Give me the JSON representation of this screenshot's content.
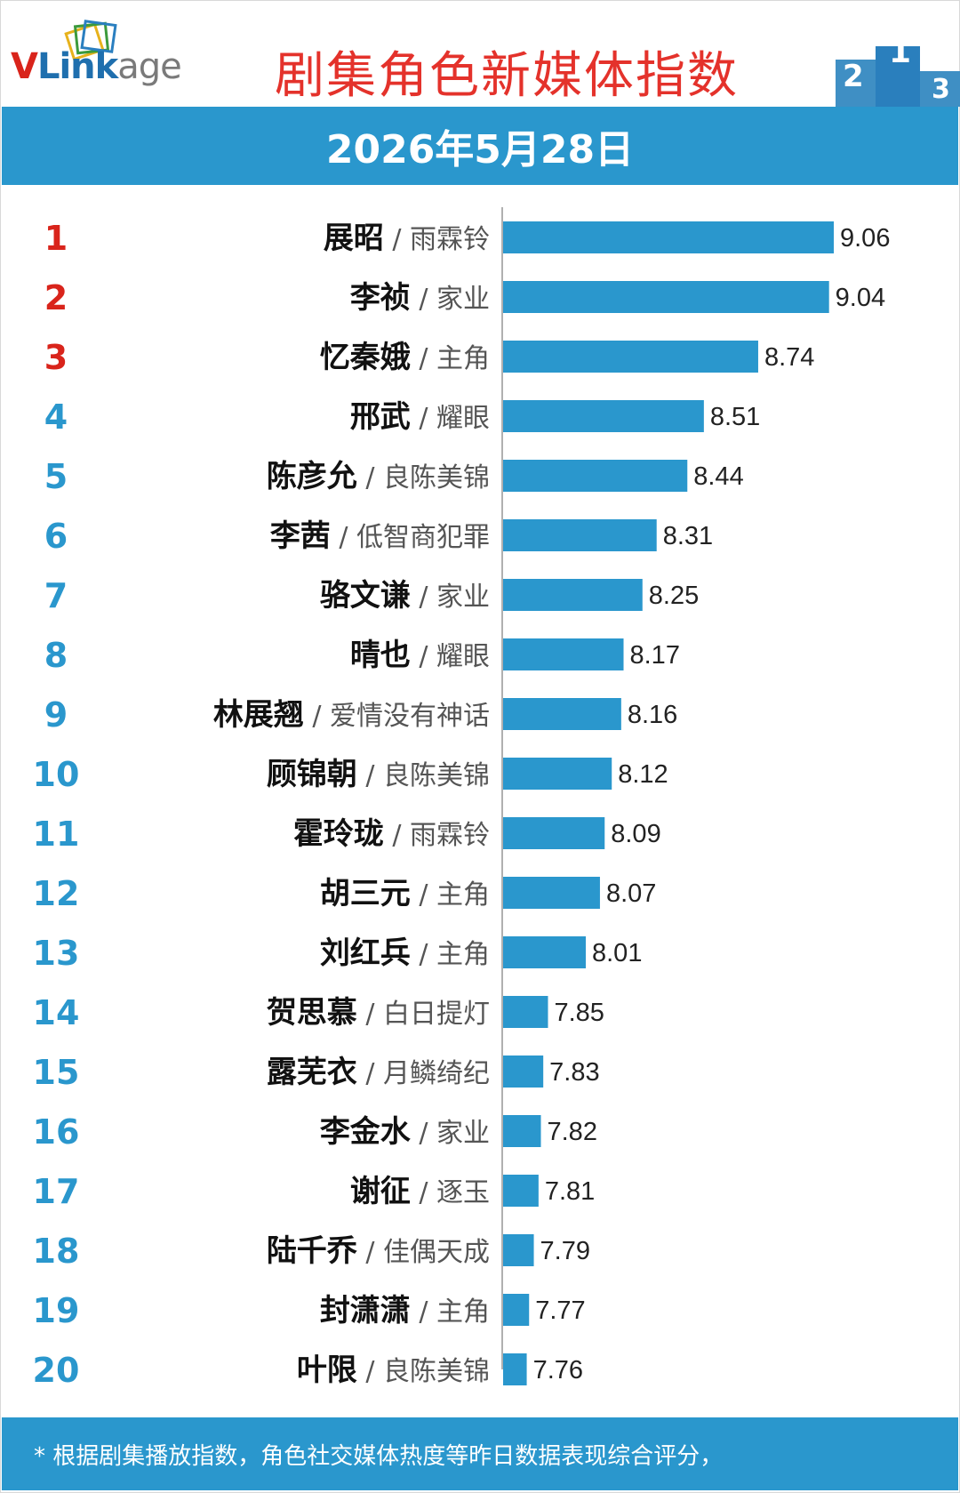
{
  "brand": {
    "logo_text_v": "V",
    "logo_text_link": "Link",
    "logo_text_age": "age"
  },
  "header": {
    "title": "剧集角色新媒体指数",
    "date": "2026年5月28日"
  },
  "footer": {
    "note": "* 根据剧集播放指数，角色社交媒体热度等昨日数据表现综合评分，"
  },
  "colors": {
    "bar": "#2a97cd",
    "title_red": "#e4322b",
    "rank_top": "#d9241b",
    "rank_other": "#2a97cd"
  },
  "chart_data": {
    "type": "bar",
    "orientation": "horizontal",
    "ranks": [
      "1",
      "2",
      "3",
      "4",
      "5",
      "6",
      "7",
      "8",
      "9",
      "10",
      "11",
      "12",
      "13",
      "14",
      "15",
      "16",
      "17",
      "18",
      "19",
      "20"
    ],
    "names": [
      "展昭",
      "李祯",
      "忆秦娥",
      "邢武",
      "陈彦允",
      "李茜",
      "骆文谦",
      "晴也",
      "林展翘",
      "顾锦朝",
      "霍玲珑",
      "胡三元",
      "刘红兵",
      "贺思慕",
      "露芜衣",
      "李金水",
      "谢征",
      "陆千乔",
      "封潇潇",
      "叶限"
    ],
    "shows": [
      "雨霖铃",
      "家业",
      "主角",
      "耀眼",
      "良陈美锦",
      "低智商犯罪",
      "家业",
      "耀眼",
      "爱情没有神话",
      "良陈美锦",
      "雨霖铃",
      "主角",
      "主角",
      "白日提灯",
      "月鳞绮纪",
      "家业",
      "逐玉",
      "佳偶天成",
      "主角",
      "良陈美锦"
    ],
    "separator": "/",
    "values": [
      9.06,
      9.04,
      8.74,
      8.51,
      8.44,
      8.31,
      8.25,
      8.17,
      8.16,
      8.12,
      8.09,
      8.07,
      8.01,
      7.85,
      7.83,
      7.82,
      7.81,
      7.79,
      7.77,
      7.76
    ],
    "value_labels": [
      "9.06",
      "9.04",
      "8.74",
      "8.51",
      "8.44",
      "8.31",
      "8.25",
      "8.17",
      "8.16",
      "8.12",
      "8.09",
      "8.07",
      "8.01",
      "7.85",
      "7.83",
      "7.82",
      "7.81",
      "7.79",
      "7.77",
      "7.76"
    ],
    "xlim": [
      7.66,
      9.06
    ]
  }
}
